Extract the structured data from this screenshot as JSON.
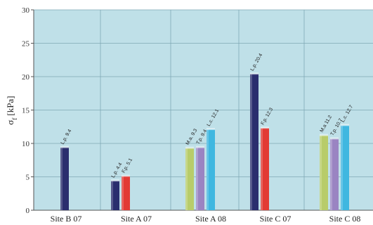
{
  "chart_data": {
    "type": "bar",
    "title": "",
    "xlabel": "",
    "ylabel": "σ",
    "ylabel_subscript": "f",
    "ylabel_unit": "[kPa]",
    "ylim": [
      0,
      30
    ],
    "yticks": [
      "0",
      "5",
      "10",
      "15",
      "20",
      "25",
      "30"
    ],
    "grid": "on",
    "plot_background": "#bfe0e8",
    "categories": [
      "Site B 07",
      "Site A 07",
      "Site A 08",
      "Site C 07",
      "Site C 08"
    ],
    "bars": [
      {
        "category": "Site B 07",
        "slot": 0,
        "value": 9.4,
        "label": "L.p. 9.4",
        "color": "#2a2e6e"
      },
      {
        "category": "Site A 07",
        "slot": 0,
        "value": 4.4,
        "label": "L.p. 4.4",
        "color": "#2a2e6e"
      },
      {
        "category": "Site A 07",
        "slot": 1,
        "value": 5.1,
        "label": "F.p. 5.1",
        "color": "#e23a34"
      },
      {
        "category": "Site A 08",
        "slot": 0,
        "value": 9.3,
        "label": "M.a. 9.3",
        "color": "#b8cc6a"
      },
      {
        "category": "Site A 08",
        "slot": 1,
        "value": 9.4,
        "label": "T.p. 9.4",
        "color": "#9a84c2"
      },
      {
        "category": "Site A 08",
        "slot": 2,
        "value": 12.1,
        "label": "L.c. 12.1",
        "color": "#3fb7e0"
      },
      {
        "category": "Site C 07",
        "slot": 0,
        "value": 20.4,
        "label": "L.p. 20.4",
        "color": "#2a2e6e"
      },
      {
        "category": "Site C 07",
        "slot": 1,
        "value": 12.3,
        "label": "F.p. 12.3",
        "color": "#e23a34"
      },
      {
        "category": "Site C 08",
        "slot": 0,
        "value": 11.2,
        "label": "M.a 11.2",
        "color": "#b8cc6a"
      },
      {
        "category": "Site C 08",
        "slot": 1,
        "value": 10.7,
        "label": "T.p. 10.7",
        "color": "#9a84c2"
      },
      {
        "category": "Site C 08",
        "slot": 2,
        "value": 12.7,
        "label": "L.c. 12.7",
        "color": "#3fb7e0"
      }
    ]
  }
}
